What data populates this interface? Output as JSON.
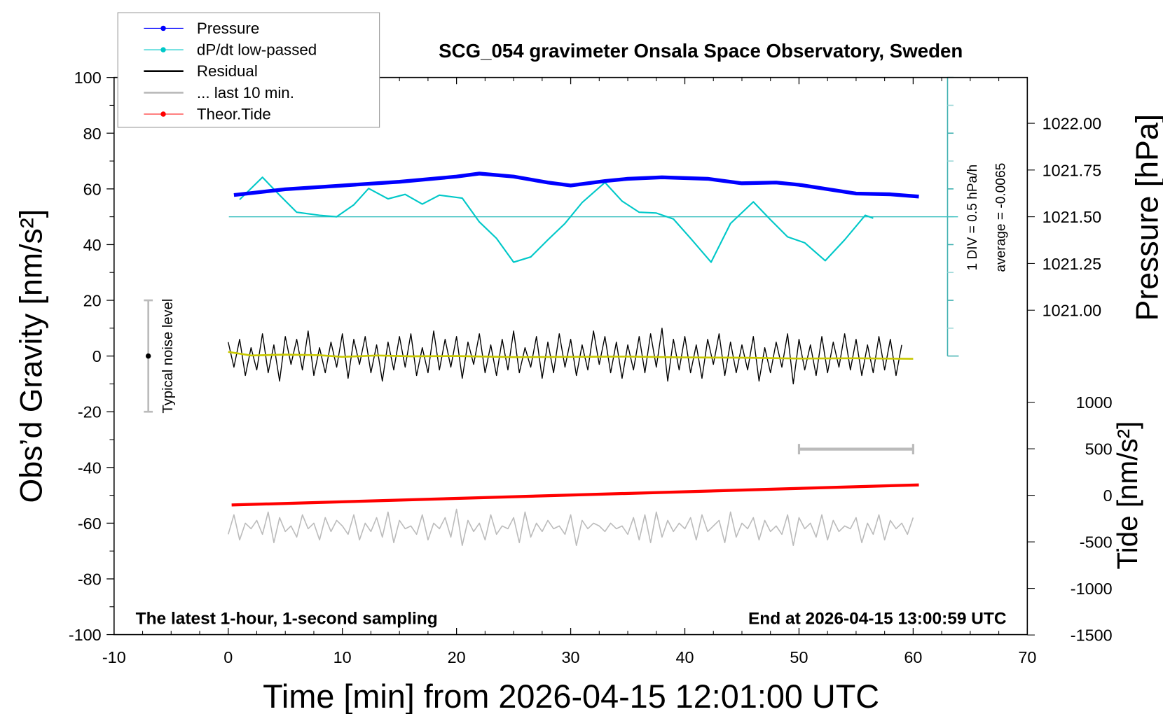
{
  "chart_data": {
    "type": "line",
    "title": "SCG_054 gravimeter Onsala Space Observatory, Sweden",
    "xlabel": "Time [min] from 2026-04-15 12:01:00 UTC",
    "ylabel": "Obs’d Gravity [nm/s²]",
    "ylabel_right_pressure": "Pressure [hPa]",
    "ylabel_right_tide": "Tide [nm/s²]",
    "xlim": [
      -10,
      70
    ],
    "ylim": [
      -100,
      100
    ],
    "x_ticks": [
      "-10",
      "0",
      "10",
      "20",
      "30",
      "40",
      "50",
      "60",
      "70"
    ],
    "y_ticks": [
      "100",
      "80",
      "60",
      "40",
      "20",
      "0",
      "-20",
      "-40",
      "-60",
      "-80",
      "-100"
    ],
    "pressure_ticks": [
      "1022.00",
      "1021.75",
      "1021.50",
      "1021.25",
      "1021.00"
    ],
    "tide_ticks": [
      "1000",
      "500",
      "0",
      "-500",
      "-1000",
      "-1500"
    ],
    "grid": false,
    "legend_placement": "top-left",
    "legend": [
      {
        "label": "Pressure",
        "color": "#0000ff",
        "marker": true
      },
      {
        "label": "dP/dt low-passed",
        "color": "#00c8c8",
        "marker": true
      },
      {
        "label": "Residual",
        "color": "#000000",
        "marker": false
      },
      {
        "label": "... last 10 min.",
        "color": "#bbbbbb",
        "marker": false
      },
      {
        "label": "Theor.Tide",
        "color": "#ff0000",
        "marker": true
      }
    ],
    "dpdt_axis_label": "1 DIV = 0.5 hPa/h",
    "dpdt_average_label": "average = -0.0065",
    "dpdt_average": -0.0065,
    "noise_label": "Typical noise level",
    "noise_range": [
      -20,
      20
    ],
    "footer_left": "The latest 1-hour, 1-second sampling",
    "footer_right": "End at 2026-04-15 13:00:59 UTC",
    "series": [
      {
        "name": "Pressure",
        "unit": "hPa",
        "color": "#0000ff",
        "x": [
          0.5,
          5,
          10,
          15,
          20,
          22,
          25,
          28,
          30,
          33,
          35,
          38,
          42,
          45,
          48,
          50,
          53,
          55,
          58,
          60.5
        ],
        "values": [
          1021.616,
          1021.647,
          1021.667,
          1021.687,
          1021.715,
          1021.731,
          1021.715,
          1021.683,
          1021.667,
          1021.691,
          1021.703,
          1021.711,
          1021.703,
          1021.679,
          1021.683,
          1021.671,
          1021.643,
          1021.624,
          1021.62,
          1021.608
        ]
      },
      {
        "name": "dP/dt low-passed",
        "unit": "hPa/h",
        "color": "#00c8c8",
        "x": [
          1,
          3,
          4.5,
          6,
          8,
          9.5,
          11,
          12.3,
          14,
          15.5,
          17,
          18.5,
          20.5,
          22,
          23.5,
          25,
          26.5,
          28,
          29.5,
          31,
          33,
          34.5,
          36,
          37.5,
          39,
          40.5,
          42.3,
          44,
          46,
          47.5,
          49,
          50.5,
          52.3,
          54,
          55.8,
          56.5
        ],
        "values": [
          0.301,
          0.702,
          0.381,
          0.074,
          0.02,
          -0.007,
          0.207,
          0.502,
          0.315,
          0.395,
          0.221,
          0.381,
          0.328,
          -0.1,
          -0.394,
          -0.822,
          -0.728,
          -0.421,
          -0.127,
          0.248,
          0.609,
          0.274,
          0.074,
          0.06,
          -0.047,
          -0.394,
          -0.822,
          -0.127,
          0.261,
          -0.06,
          -0.368,
          -0.474,
          -0.795,
          -0.421,
          0.02,
          -0.033
        ]
      },
      {
        "name": "Residual",
        "unit": "nm/s²",
        "color": "#000000",
        "x_start": 0,
        "x_step": 0.5,
        "values": [
          5,
          -4,
          6,
          -7,
          3,
          -5,
          8,
          -6,
          4,
          -9,
          7,
          -3,
          6,
          -5,
          9,
          -7,
          3,
          -6,
          5,
          -4,
          8,
          -8,
          6,
          -3,
          7,
          -6,
          4,
          -9,
          5,
          -5,
          7,
          -4,
          8,
          -7,
          3,
          -6,
          9,
          -5,
          6,
          -4,
          7,
          -8,
          5,
          -3,
          8,
          -6,
          4,
          -7,
          6,
          -5,
          9,
          -6,
          3,
          -4,
          7,
          -8,
          5,
          -6,
          8,
          -4,
          6,
          -7,
          4,
          -5,
          9,
          -3,
          7,
          -6,
          5,
          -8,
          4,
          -5,
          7,
          -6,
          8,
          -4,
          10,
          -9,
          6,
          -5,
          7,
          -6,
          4,
          -8,
          6,
          -3,
          8,
          -7,
          5,
          -6,
          4,
          -5,
          7,
          -9,
          3,
          -6,
          5,
          -4,
          8,
          -10,
          6,
          -5,
          4,
          -7,
          7,
          -6,
          5,
          -4,
          8,
          -5,
          6,
          -7,
          4,
          -6,
          7,
          -5,
          6,
          -7,
          4
        ]
      },
      {
        "name": "Residual smoothed",
        "color": "#c8c800",
        "x": [
          0,
          2,
          5,
          8,
          10,
          13,
          16,
          20,
          25,
          30,
          35,
          40,
          45,
          50,
          55,
          60
        ],
        "values": [
          1.5,
          0.2,
          0.5,
          0.3,
          -0.3,
          0.2,
          -0.1,
          0,
          -0.4,
          -0.3,
          -0.2,
          -0.5,
          -0.6,
          -0.9,
          -0.8,
          -1.0
        ]
      },
      {
        "name": "... last 10 min.",
        "unit": "nm/s²",
        "color": "#bbbbbb",
        "x_start": 0,
        "x_step": 0.5,
        "values": [
          -64,
          -57,
          -66,
          -60,
          -62,
          -59,
          -64,
          -56,
          -67,
          -58,
          -63,
          -61,
          -65,
          -57,
          -62,
          -60,
          -66,
          -58,
          -63,
          -59,
          -61,
          -64,
          -57,
          -66,
          -60,
          -63,
          -58,
          -65,
          -56,
          -67,
          -59,
          -62,
          -61,
          -64,
          -57,
          -66,
          -60,
          -62,
          -58,
          -65,
          -55,
          -68,
          -59,
          -63,
          -60,
          -66,
          -57,
          -64,
          -61,
          -62,
          -58,
          -67,
          -56,
          -65,
          -60,
          -63,
          -59,
          -62,
          -61,
          -64,
          -57,
          -68,
          -59,
          -62,
          -60,
          -61,
          -63,
          -60,
          -62,
          -61,
          -64,
          -58,
          -66,
          -57,
          -67,
          -56,
          -65,
          -59,
          -63,
          -60,
          -62,
          -58,
          -66,
          -57,
          -63,
          -61,
          -59,
          -67,
          -56,
          -65,
          -60,
          -62,
          -58,
          -66,
          -59,
          -63,
          -61,
          -64,
          -57,
          -68,
          -58,
          -62,
          -60,
          -65,
          -57,
          -66,
          -59,
          -63,
          -61,
          -62,
          -58,
          -67,
          -60,
          -64,
          -57,
          -66,
          -59,
          -62,
          -60,
          -64,
          -58
        ]
      },
      {
        "name": "Theor.Tide",
        "unit": "nm/s²",
        "color": "#ff0000",
        "x": [
          0.3,
          60.5
        ],
        "values": [
          -104,
          112
        ]
      }
    ],
    "scale_bar_minutes": [
      50,
      60
    ]
  }
}
